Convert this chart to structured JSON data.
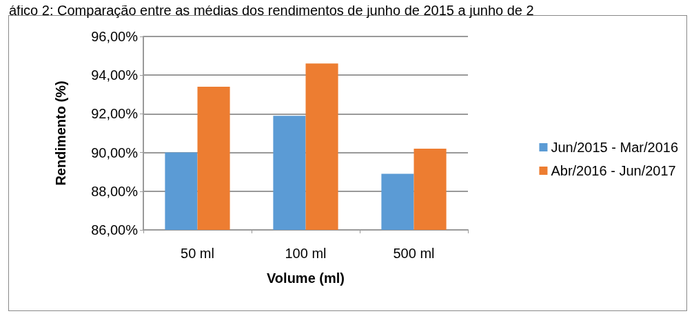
{
  "chart_data": {
    "type": "bar",
    "title": "áfico 2: Comparação entre as médias dos rendimentos de junho de 2015 a junho de 2",
    "xlabel": "Volume (ml)",
    "ylabel": "Rendimento (%)",
    "categories": [
      "50 ml",
      "100 ml",
      "500 ml"
    ],
    "series": [
      {
        "name": "Jun/2015 - Mar/2016",
        "color": "#5b9bd5",
        "values": [
          90.0,
          91.9,
          88.9
        ]
      },
      {
        "name": "Abr/2016 - Jun/2017",
        "color": "#ed7d31",
        "values": [
          93.4,
          94.6,
          90.2
        ]
      }
    ],
    "ylim": [
      86,
      96
    ],
    "yticks": [
      {
        "value": 86,
        "label": "86,00%"
      },
      {
        "value": 88,
        "label": "88,00%"
      },
      {
        "value": 90,
        "label": "90,00%"
      },
      {
        "value": 92,
        "label": "92,00%"
      },
      {
        "value": 94,
        "label": "94,00%"
      },
      {
        "value": 96,
        "label": "96,00%"
      }
    ],
    "grid": "y",
    "legend": "right"
  }
}
